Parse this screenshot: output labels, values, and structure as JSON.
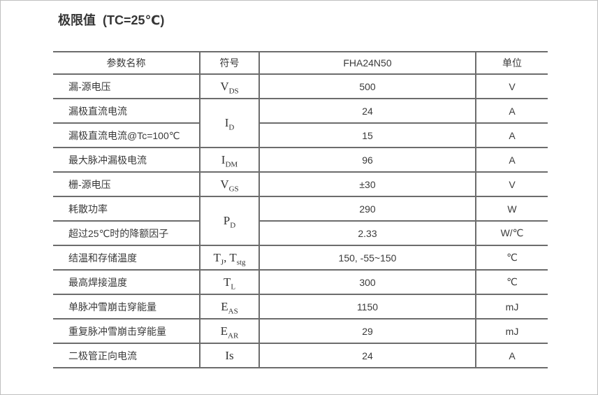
{
  "title": "极限值  (TC=25℃)",
  "table": {
    "headers": {
      "param": "参数名称",
      "symbol": "符号",
      "device": "FHA24N50",
      "unit": "单位"
    },
    "rows": [
      {
        "param": "漏-源电压",
        "sym": {
          "b1": "V",
          "s1": "DS"
        },
        "value": "500",
        "unit": "V"
      },
      {
        "param": "漏极直流电流",
        "sym": {
          "b1": "I",
          "s1": "D"
        },
        "value": "24",
        "unit": "A"
      },
      {
        "param": "漏极直流电流@Tc=100℃",
        "value": "15",
        "unit": "A"
      },
      {
        "param": "最大脉冲漏极电流",
        "sym": {
          "b1": "I",
          "s1": "DM"
        },
        "value": "96",
        "unit": "A"
      },
      {
        "param": "栅-源电压",
        "sym": {
          "b1": "V",
          "s1": "GS"
        },
        "value": "±30",
        "unit": "V"
      },
      {
        "param": "耗散功率",
        "sym": {
          "b1": "P",
          "s1": "D"
        },
        "value": "290",
        "unit": "W"
      },
      {
        "param": "超过25℃时的降额因子",
        "value": "2.33",
        "unit": "W/℃"
      },
      {
        "param": "结温和存储温度",
        "sym": {
          "b1": "T",
          "s1": "J",
          "sep": ",  ",
          "b2": "T",
          "s2": "stg"
        },
        "value": "150, -55~150",
        "unit": "℃"
      },
      {
        "param": "最高焊接温度",
        "sym": {
          "b1": "T",
          "s1": "L"
        },
        "value": "300",
        "unit": "℃"
      },
      {
        "param": "单脉冲雪崩击穿能量",
        "sym": {
          "b1": "E",
          "s1": "AS"
        },
        "value": "1150",
        "unit": "mJ"
      },
      {
        "param": "重复脉冲雪崩击穿能量",
        "sym": {
          "b1": "E",
          "s1": "AR"
        },
        "value": "29",
        "unit": "mJ"
      },
      {
        "param": "二极管正向电流",
        "sym": {
          "b1": "Is"
        },
        "value": "24",
        "unit": "A"
      }
    ]
  }
}
